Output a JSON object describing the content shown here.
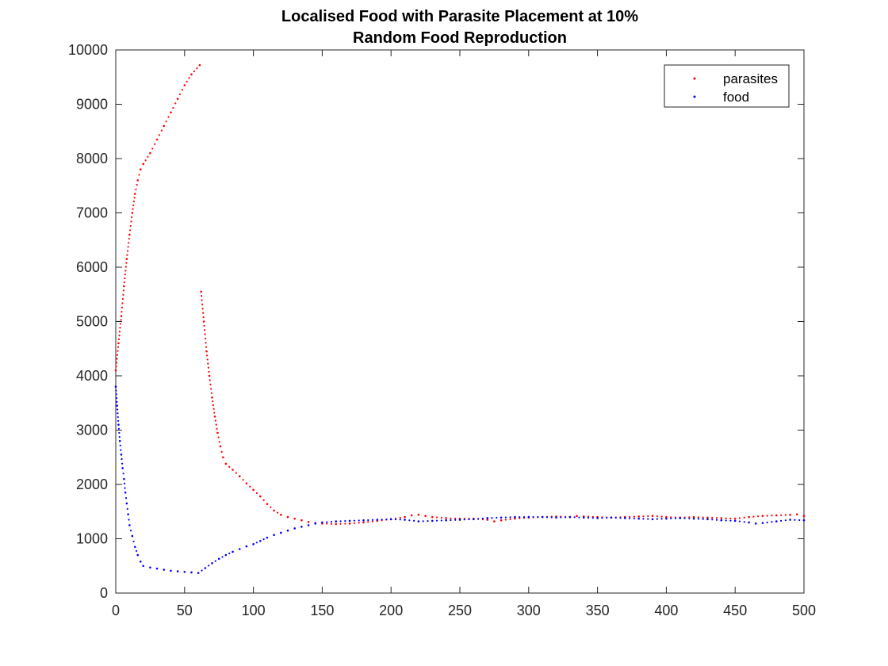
{
  "chart_data": {
    "type": "scatter",
    "title": [
      "Localised Food with Parasite Placement at 10%",
      "Random Food Reproduction"
    ],
    "xlabel": "",
    "ylabel": "",
    "xlim": [
      0,
      500
    ],
    "ylim": [
      0,
      10000
    ],
    "xticks": [
      0,
      50,
      100,
      150,
      200,
      250,
      300,
      350,
      400,
      450,
      500
    ],
    "yticks": [
      0,
      1000,
      2000,
      3000,
      4000,
      5000,
      6000,
      7000,
      8000,
      9000,
      10000
    ],
    "grid": false,
    "legend_position": "top-right",
    "series": [
      {
        "name": "parasites",
        "color": "#ff0000",
        "points": [
          [
            0,
            4100
          ],
          [
            2,
            4600
          ],
          [
            4,
            5100
          ],
          [
            6,
            5650
          ],
          [
            8,
            6150
          ],
          [
            10,
            6600
          ],
          [
            12,
            7000
          ],
          [
            14,
            7350
          ],
          [
            16,
            7600
          ],
          [
            18,
            7800
          ],
          [
            20,
            7900
          ],
          [
            25,
            8100
          ],
          [
            30,
            8350
          ],
          [
            35,
            8600
          ],
          [
            40,
            8850
          ],
          [
            45,
            9100
          ],
          [
            50,
            9350
          ],
          [
            55,
            9550
          ],
          [
            61,
            9720
          ],
          [
            62,
            5550
          ],
          [
            64,
            5000
          ],
          [
            66,
            4450
          ],
          [
            68,
            4000
          ],
          [
            70,
            3600
          ],
          [
            72,
            3250
          ],
          [
            74,
            2950
          ],
          [
            76,
            2700
          ],
          [
            78,
            2500
          ],
          [
            80,
            2380
          ],
          [
            85,
            2270
          ],
          [
            90,
            2150
          ],
          [
            95,
            2020
          ],
          [
            100,
            1900
          ],
          [
            105,
            1780
          ],
          [
            110,
            1640
          ],
          [
            115,
            1520
          ],
          [
            120,
            1440
          ],
          [
            125,
            1400
          ],
          [
            130,
            1370
          ],
          [
            135,
            1340
          ],
          [
            140,
            1310
          ],
          [
            145,
            1290
          ],
          [
            150,
            1280
          ],
          [
            160,
            1270
          ],
          [
            170,
            1280
          ],
          [
            180,
            1300
          ],
          [
            190,
            1330
          ],
          [
            200,
            1360
          ],
          [
            210,
            1400
          ],
          [
            215,
            1430
          ],
          [
            220,
            1440
          ],
          [
            225,
            1420
          ],
          [
            230,
            1400
          ],
          [
            240,
            1380
          ],
          [
            250,
            1370
          ],
          [
            260,
            1370
          ],
          [
            270,
            1350
          ],
          [
            275,
            1320
          ],
          [
            280,
            1340
          ],
          [
            290,
            1370
          ],
          [
            300,
            1390
          ],
          [
            310,
            1400
          ],
          [
            320,
            1410
          ],
          [
            330,
            1400
          ],
          [
            335,
            1420
          ],
          [
            340,
            1410
          ],
          [
            350,
            1400
          ],
          [
            360,
            1390
          ],
          [
            370,
            1400
          ],
          [
            380,
            1410
          ],
          [
            390,
            1420
          ],
          [
            400,
            1400
          ],
          [
            410,
            1390
          ],
          [
            420,
            1400
          ],
          [
            430,
            1390
          ],
          [
            440,
            1380
          ],
          [
            450,
            1370
          ],
          [
            460,
            1400
          ],
          [
            470,
            1420
          ],
          [
            480,
            1430
          ],
          [
            490,
            1440
          ],
          [
            495,
            1450
          ],
          [
            500,
            1420
          ]
        ]
      },
      {
        "name": "food",
        "color": "#0000ff",
        "points": [
          [
            0,
            3800
          ],
          [
            1,
            3450
          ],
          [
            2,
            3100
          ],
          [
            3,
            2800
          ],
          [
            4,
            2550
          ],
          [
            5,
            2300
          ],
          [
            6,
            2100
          ],
          [
            7,
            1850
          ],
          [
            8,
            1650
          ],
          [
            9,
            1450
          ],
          [
            10,
            1250
          ],
          [
            12,
            1050
          ],
          [
            14,
            850
          ],
          [
            16,
            700
          ],
          [
            18,
            580
          ],
          [
            20,
            500
          ],
          [
            25,
            470
          ],
          [
            30,
            450
          ],
          [
            35,
            430
          ],
          [
            40,
            410
          ],
          [
            45,
            400
          ],
          [
            50,
            390
          ],
          [
            55,
            380
          ],
          [
            60,
            370
          ],
          [
            65,
            460
          ],
          [
            70,
            550
          ],
          [
            75,
            630
          ],
          [
            80,
            700
          ],
          [
            85,
            760
          ],
          [
            90,
            810
          ],
          [
            95,
            860
          ],
          [
            100,
            900
          ],
          [
            105,
            960
          ],
          [
            110,
            1020
          ],
          [
            115,
            1070
          ],
          [
            120,
            1110
          ],
          [
            125,
            1150
          ],
          [
            130,
            1190
          ],
          [
            135,
            1220
          ],
          [
            140,
            1250
          ],
          [
            145,
            1280
          ],
          [
            150,
            1300
          ],
          [
            160,
            1320
          ],
          [
            170,
            1330
          ],
          [
            180,
            1340
          ],
          [
            190,
            1350
          ],
          [
            200,
            1360
          ],
          [
            210,
            1350
          ],
          [
            220,
            1320
          ],
          [
            230,
            1330
          ],
          [
            240,
            1340
          ],
          [
            250,
            1350
          ],
          [
            260,
            1360
          ],
          [
            270,
            1380
          ],
          [
            280,
            1390
          ],
          [
            290,
            1400
          ],
          [
            300,
            1400
          ],
          [
            310,
            1400
          ],
          [
            320,
            1390
          ],
          [
            330,
            1400
          ],
          [
            340,
            1390
          ],
          [
            350,
            1380
          ],
          [
            360,
            1390
          ],
          [
            370,
            1380
          ],
          [
            380,
            1370
          ],
          [
            390,
            1360
          ],
          [
            400,
            1370
          ],
          [
            410,
            1380
          ],
          [
            420,
            1370
          ],
          [
            430,
            1360
          ],
          [
            440,
            1340
          ],
          [
            450,
            1330
          ],
          [
            460,
            1300
          ],
          [
            465,
            1280
          ],
          [
            470,
            1290
          ],
          [
            480,
            1320
          ],
          [
            490,
            1350
          ],
          [
            500,
            1340
          ]
        ]
      }
    ]
  }
}
